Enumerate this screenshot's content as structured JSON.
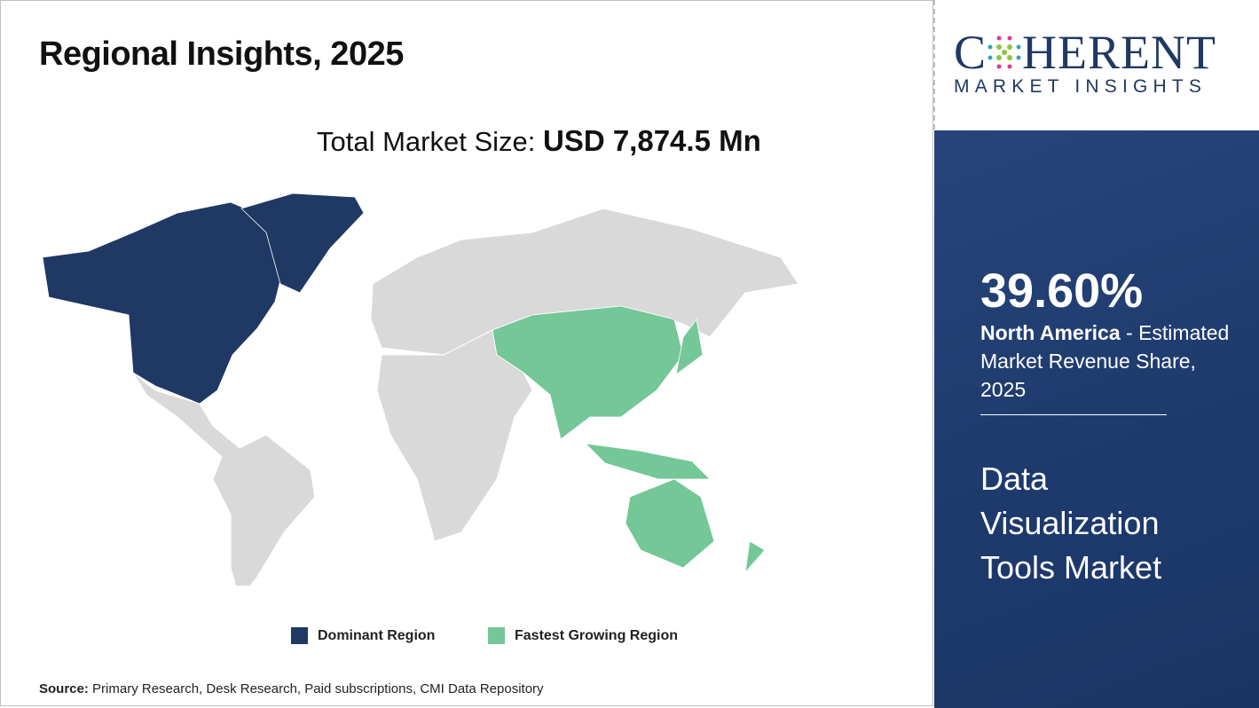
{
  "header": {
    "title": "Regional Insights, 2025",
    "total_label": "Total Market Size: ",
    "total_value": "USD 7,874.5 Mn"
  },
  "legend": [
    {
      "label": "Dominant Region",
      "color": "#1f3864"
    },
    {
      "label": "Fastest Growing Region",
      "color": "#74c796"
    }
  ],
  "map": {
    "dominant_region": "North America",
    "fastest_growing_region": "Asia Pacific",
    "base_color": "#d9d9d9"
  },
  "source": {
    "label": "Source:",
    "text": " Primary Research, Desk Research, Paid subscriptions, CMI Data Repository"
  },
  "logo": {
    "main_before": "C",
    "main_after": "HERENT",
    "sub": "MARKET INSIGHTS"
  },
  "panel": {
    "share": "39.60%",
    "region": "North America",
    "desc": " - Estimated Market Revenue Share, 2025",
    "market_name": "Data Visualization Tools Market",
    "bg_color": "#1f3864"
  }
}
